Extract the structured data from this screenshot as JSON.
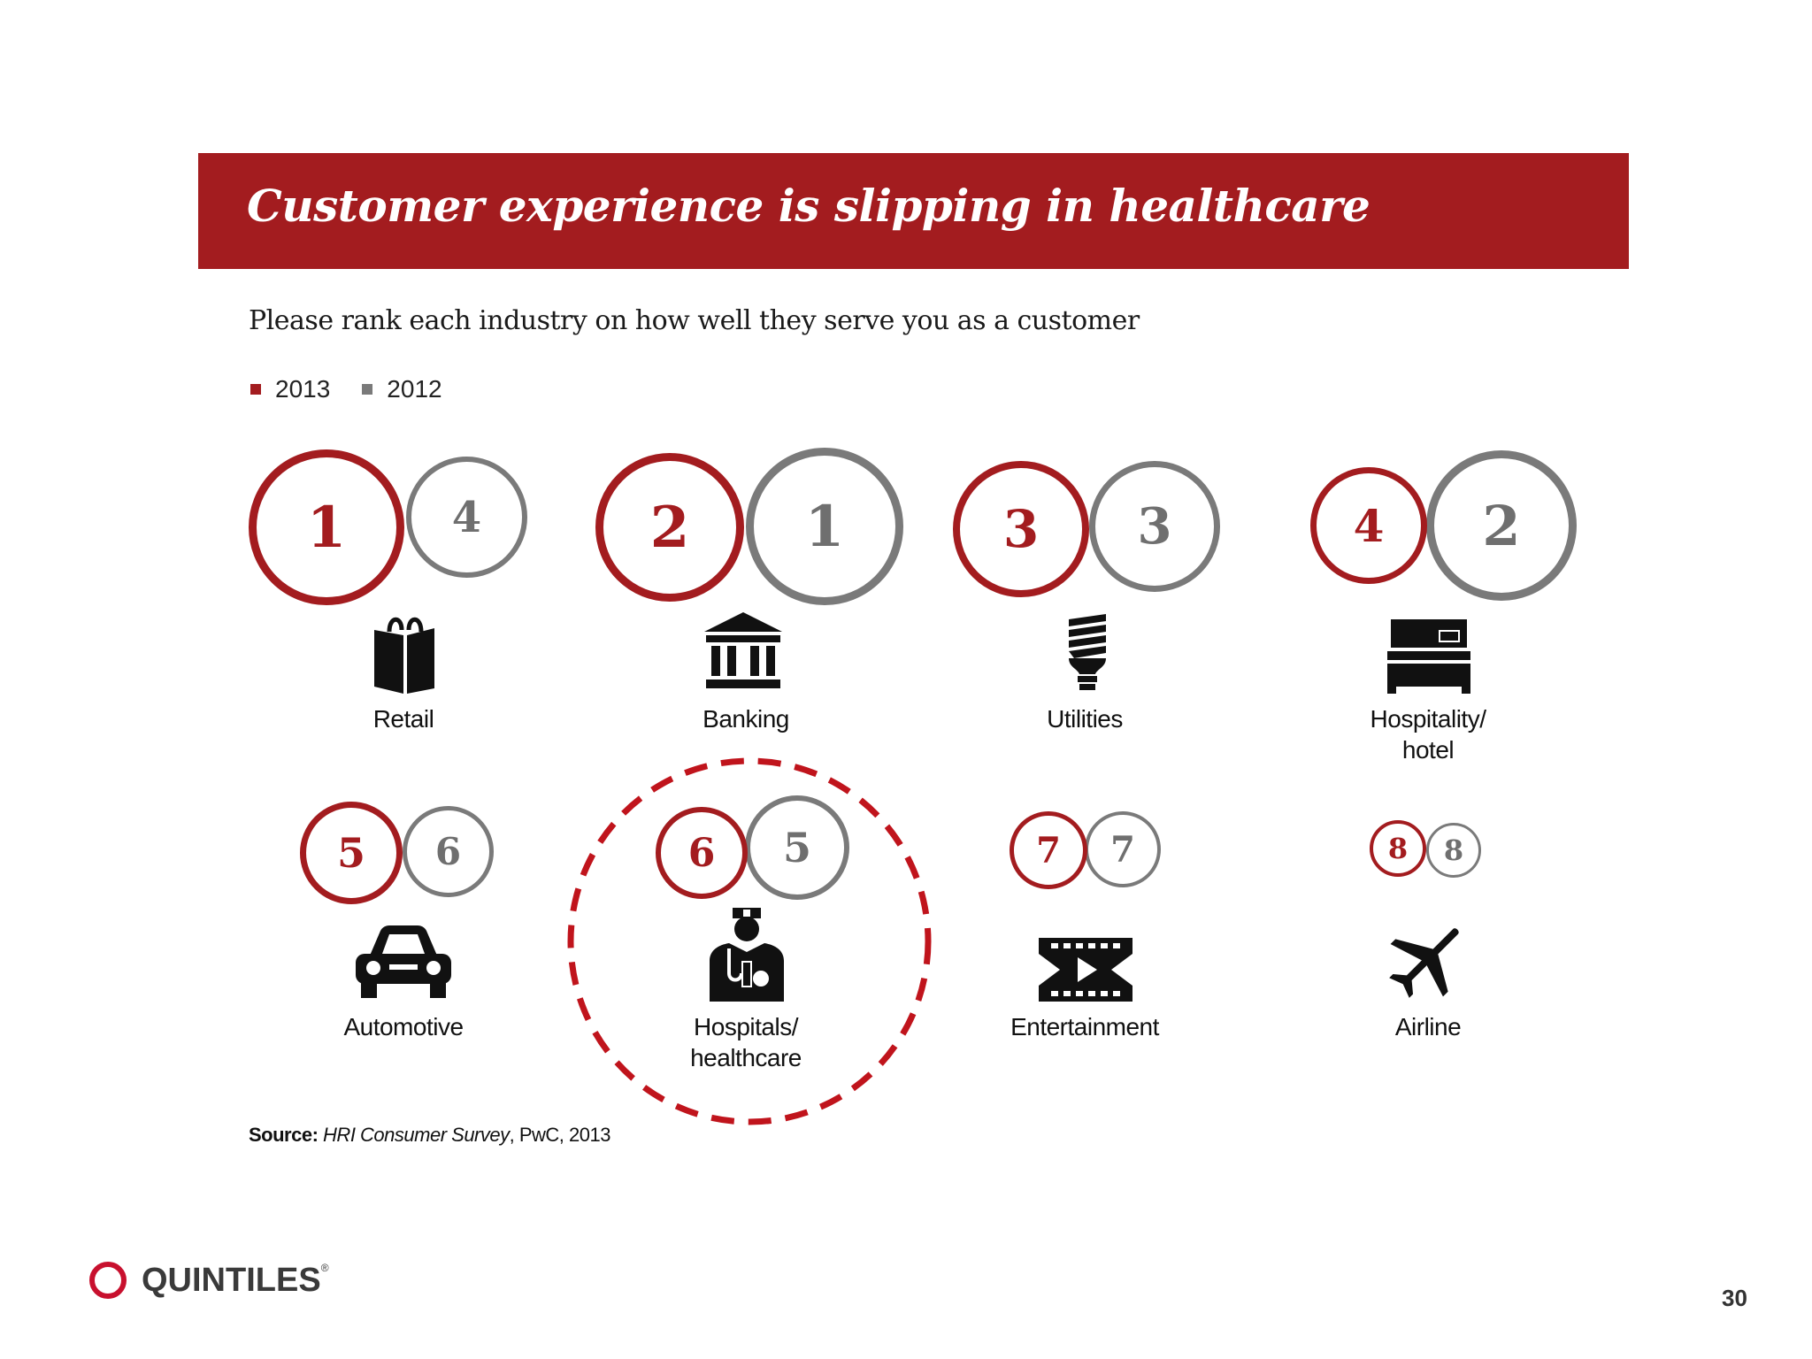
{
  "title": "Customer experience is slipping in healthcare",
  "question": "Please rank each industry on how well they serve you as a customer",
  "legend": [
    {
      "label": "2013",
      "color": "#a31c1f"
    },
    {
      "label": "2012",
      "color": "#7a7a7a"
    }
  ],
  "industries": [
    {
      "label": "Retail",
      "rank_2013": "1",
      "rank_2012": "4",
      "icon": "shopping-bag-icon"
    },
    {
      "label": "Banking",
      "rank_2013": "2",
      "rank_2012": "1",
      "icon": "bank-icon"
    },
    {
      "label": "Utilities",
      "rank_2013": "3",
      "rank_2012": "3",
      "icon": "light-bulb-icon"
    },
    {
      "label": "Hospitality/ hotel",
      "rank_2013": "4",
      "rank_2012": "2",
      "icon": "bed-icon"
    },
    {
      "label": "Automotive",
      "rank_2013": "5",
      "rank_2012": "6",
      "icon": "car-icon"
    },
    {
      "label": "Hospitals/ healthcare",
      "rank_2013": "6",
      "rank_2012": "5",
      "icon": "doctor-icon"
    },
    {
      "label": "Entertainment",
      "rank_2013": "7",
      "rank_2012": "7",
      "icon": "film-icon"
    },
    {
      "label": "Airline",
      "rank_2013": "8",
      "rank_2012": "8",
      "icon": "airplane-icon"
    }
  ],
  "source": {
    "prefix": "Source:",
    "title": "HRI Consumer Survey",
    "suffix": ", PwC, 2013"
  },
  "footer": {
    "company": "QUINTILES",
    "reg_mark": "®",
    "page_number": "30"
  },
  "colors": {
    "accent": "#a31c1f",
    "highlight": "#c0141c",
    "gray": "#7a7a7a"
  }
}
